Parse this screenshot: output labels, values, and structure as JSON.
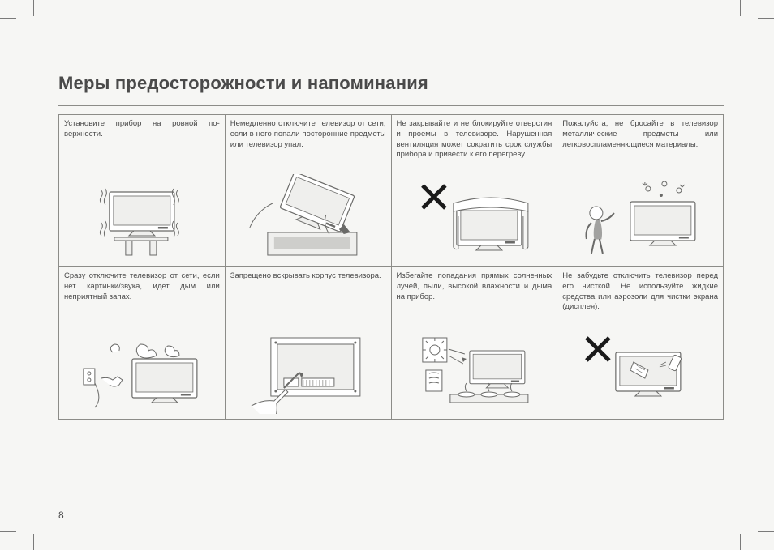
{
  "title": "Меры предосторожности и напоминания",
  "pageNumber": "8",
  "layout": {
    "pageWidth": 954,
    "pageHeight": 679,
    "columns": 4,
    "rows": 2,
    "colors": {
      "background": "#f6f6f4",
      "text": "#4a4a4a",
      "border": "#8c8c88",
      "stroke": "#6a6a68",
      "lightFill": "#efefed",
      "white": "#ffffff",
      "cross": "#1a1a1a"
    },
    "font": {
      "titleSize": 22,
      "bodySize": 9.5,
      "family": "Arial"
    }
  },
  "cells": [
    {
      "text": "Установите прибор на ровной по­верхности.",
      "illustration": "flat-surface"
    },
    {
      "text": "Немедленно отключите телеви­зор от сети, если в него попали посторонние предметы или теле­визор упал.",
      "illustration": "falling-tv"
    },
    {
      "text": "Не закрывайте и не блокируйте от­верстия и проемы в телевизоре. Нарушенная вентиляция может сократить срок службы прибора и привести к его перегреву.",
      "illustration": "covered-tv-cross"
    },
    {
      "text": "Пожалуйста, не бросайте в теле­визор металлические предметы или легковоспламеняющиеся ма­териалы.",
      "illustration": "child-throwing"
    },
    {
      "text": "Сразу отключите телевизор от сети, если нет картинки/звука, идет дым или неприятный запах.",
      "illustration": "smoke-unplug"
    },
    {
      "text": "Запрещено вскрывать корпус те­левизора.",
      "illustration": "screwdriver-back"
    },
    {
      "text": "Избегайте попадания прямых солнечных лучей, пыли, высокой влажности и дыма на прибор.",
      "illustration": "sun-steam"
    },
    {
      "text": "Не забудьте отключить телевизор перед его чисткой. Не используй­те жидкие средства или аэрозоли для чистки экрана (дисплея).",
      "illustration": "cleaning-cross"
    }
  ]
}
